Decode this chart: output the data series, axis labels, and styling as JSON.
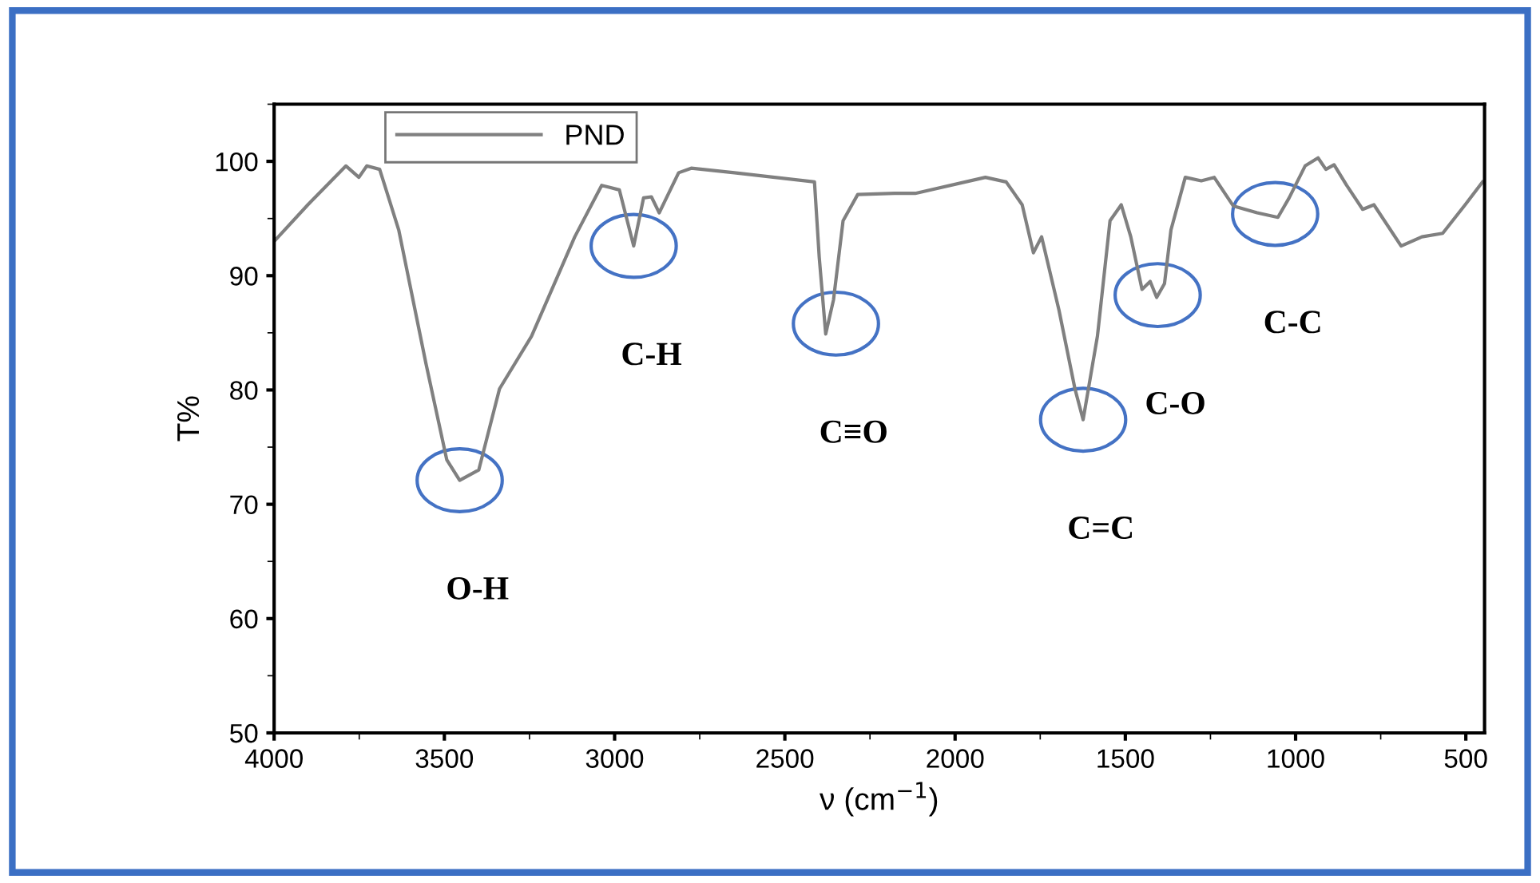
{
  "chart_data": {
    "type": "line",
    "xlabel": "ν (cm$^{−1}$)",
    "ylabel": "T%",
    "xlim": [
      4000,
      445
    ],
    "ylim": [
      50,
      105
    ],
    "xticks": [
      4000,
      3500,
      3000,
      2500,
      2000,
      1500,
      1000,
      500
    ],
    "yticks": [
      50,
      60,
      70,
      80,
      90,
      100
    ],
    "grid": false,
    "legend": "top left",
    "marker": "none",
    "line_style": "solid",
    "series": [
      {
        "name": "PND",
        "color": "#808080",
        "x": [
          4000,
          3901,
          3789,
          3751,
          3728,
          3690,
          3634,
          3554,
          3493,
          3455,
          3399,
          3338,
          3244,
          3117,
          3038,
          2986,
          2944,
          2915,
          2892,
          2869,
          2812,
          2775,
          2648,
          2413,
          2399,
          2380,
          2357,
          2329,
          2286,
          2178,
          2117,
          1911,
          1850,
          1803,
          1770,
          1746,
          1695,
          1648,
          1624,
          1582,
          1545,
          1512,
          1484,
          1451,
          1427,
          1408,
          1385,
          1366,
          1324,
          1277,
          1239,
          1183,
          1113,
          1052,
          1019,
          972,
          934,
          911,
          887,
          850,
          803,
          770,
          690,
          629,
          568,
          502,
          451
        ],
        "values": [
          93.0,
          96.2,
          99.6,
          98.6,
          99.6,
          99.3,
          94.0,
          82.3,
          73.9,
          72.1,
          73.0,
          80.1,
          84.7,
          93.4,
          97.9,
          97.5,
          92.6,
          96.8,
          96.9,
          95.5,
          99.0,
          99.4,
          99.0,
          98.2,
          91.6,
          84.9,
          87.9,
          94.8,
          97.1,
          97.2,
          97.2,
          98.6,
          98.2,
          96.2,
          92.0,
          93.4,
          87.0,
          80.1,
          77.4,
          84.7,
          94.8,
          96.2,
          93.4,
          88.8,
          89.5,
          88.1,
          89.3,
          94.0,
          98.6,
          98.3,
          98.6,
          96.1,
          95.5,
          95.1,
          96.8,
          99.6,
          100.3,
          99.3,
          99.7,
          97.9,
          95.8,
          96.2,
          92.6,
          93.4,
          93.7,
          96.2,
          98.2
        ]
      }
    ],
    "annotations": [
      {
        "text": "O-H",
        "x": 3455,
        "y": 72.1
      },
      {
        "text": "C-H",
        "x": 2944,
        "y": 92.6
      },
      {
        "text": "C≡O",
        "x": 2350,
        "y": 85.8
      },
      {
        "text": "C=C",
        "x": 1624,
        "y": 77.4
      },
      {
        "text": "C-O",
        "x": 1405,
        "y": 88.3
      },
      {
        "text": "C-C",
        "x": 1060,
        "y": 95.4
      }
    ]
  }
}
